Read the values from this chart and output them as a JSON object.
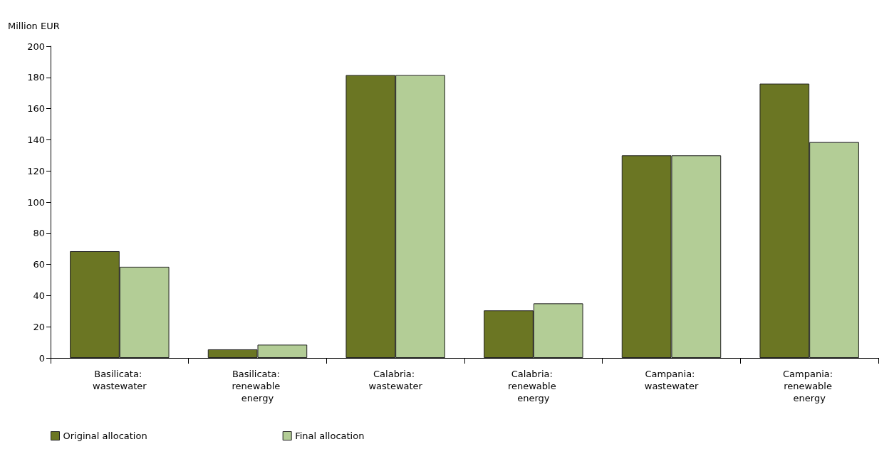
{
  "chart_data": {
    "type": "bar",
    "ylabel": "Million EUR",
    "categories": [
      "Basilicata: wastewater",
      "Basilicata: renewable energy",
      "Calabria: wastewater",
      "Calabria: renewable energy",
      "Campania: wastewater",
      "Campania: renewable energy"
    ],
    "series": [
      {
        "name": "Original allocation",
        "color": "#6b7623",
        "values": [
          68.5,
          5.5,
          181.5,
          30.5,
          130,
          176
        ]
      },
      {
        "name": "Final allocation",
        "color": "#b3cd96",
        "values": [
          58.5,
          8.5,
          181.5,
          35,
          130,
          138.5
        ]
      }
    ],
    "ylim": [
      0,
      200
    ],
    "yticks": [
      0,
      20,
      40,
      60,
      80,
      100,
      120,
      140,
      160,
      180,
      200
    ],
    "grid": false,
    "legend": "bottom left"
  }
}
